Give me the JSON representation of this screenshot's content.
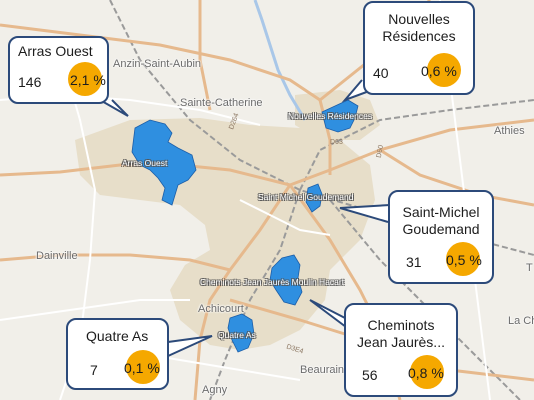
{
  "map": {
    "places": {
      "anzin": "Anzin-Saint-Aubin",
      "sainte_catherine": "Sainte-Catherine",
      "athies": "Athies",
      "dainville": "Dainville",
      "achicourt": "Achicourt",
      "agny": "Agny",
      "beaurains": "Beaurains",
      "la_cha": "La Cha",
      "tilloy": "T"
    },
    "roads": {
      "d264": "D264",
      "d63": "D63",
      "d60": "D60",
      "d3e4": "D3E4"
    },
    "quartier_labels": {
      "arras_ouest": "Arras Ouest",
      "nouvelles_residences": "Nouvelles Résidences",
      "saint_michel": "Saint Michel Goudemand",
      "cheminots": "Cheminots Jean Jaurès Moulin Hacart",
      "quatre_as": "Quatre As"
    },
    "colors": {
      "quartier_fill": "#2f8fe0",
      "callout_border": "#2c4a7a",
      "pie": "#f5a800",
      "urban": "#e7dec9",
      "background": "#f1efe9"
    }
  },
  "callouts": {
    "arras_ouest": {
      "title": "Arras Ouest",
      "count": "146",
      "percent": "2,1 %"
    },
    "nouvelles_residences": {
      "title_line1": "Nouvelles",
      "title_line2": "Résidences",
      "count": "40",
      "percent": "0,6 %"
    },
    "saint_michel": {
      "title_line1": "Saint-Michel",
      "title_line2": "Goudemand",
      "count": "31",
      "percent": "0,5 %"
    },
    "cheminots": {
      "title_line1": "Cheminots",
      "title_line2": "Jean Jaurès...",
      "count": "56",
      "percent": "0,8 %"
    },
    "quatre_as": {
      "title": "Quatre As",
      "count": "7",
      "percent": "0,1 %"
    }
  }
}
